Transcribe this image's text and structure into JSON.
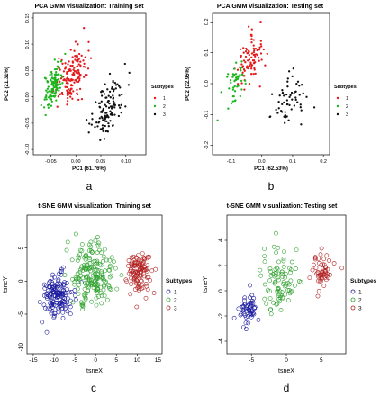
{
  "colors": {
    "red": "#e41a1c",
    "green": "#1bb51b",
    "black": "#111111",
    "blue": "#1a1a9e",
    "tsne_red": "#b22222",
    "tsne_green": "#2ca02c"
  },
  "panel_labels": [
    "a",
    "b",
    "c",
    "d"
  ],
  "chart_data": [
    {
      "type": "scatter",
      "title": "PCA GMM visualization: Training set",
      "xlabel": "PC1 (61.76%)",
      "ylabel": "PC2 (21.31%)",
      "xlim": [
        -0.085,
        0.14
      ],
      "ylim": [
        -0.11,
        0.16
      ],
      "xticks": [
        "-0.05",
        "0.00",
        "0.05",
        "0.10"
      ],
      "xtick_values": [
        -0.05,
        0.0,
        0.05,
        0.1
      ],
      "yticks": [
        "-0.10",
        "-0.05",
        "0.00",
        "0.05",
        "0.10",
        "0.15"
      ],
      "ytick_values": [
        -0.1,
        -0.05,
        0.0,
        0.05,
        0.1,
        0.15
      ],
      "legend_title": "Subtypes",
      "legend_position": "right",
      "series": [
        {
          "name": "1",
          "color": "red",
          "marker": "dot",
          "center": [
            -0.01,
            0.04
          ],
          "spread": [
            0.028,
            0.045
          ],
          "n": 150
        },
        {
          "name": "2",
          "color": "green",
          "marker": "dot",
          "center": [
            -0.045,
            0.02
          ],
          "spread": [
            0.016,
            0.03
          ],
          "n": 110
        },
        {
          "name": "3",
          "color": "black",
          "marker": "dot",
          "center": [
            0.065,
            -0.02
          ],
          "spread": [
            0.03,
            0.045
          ],
          "n": 120
        }
      ]
    },
    {
      "type": "scatter",
      "title": "PCA GMM visualization: Testing set",
      "xlabel": "PC1 (62.53%)",
      "ylabel": "PC2 (22.95%)",
      "xlim": [
        -0.16,
        0.22
      ],
      "ylim": [
        -0.23,
        0.23
      ],
      "xticks": [
        "-0.1",
        "0.0",
        "0.1",
        "0.2"
      ],
      "xtick_values": [
        -0.1,
        0.0,
        0.1,
        0.2
      ],
      "yticks": [
        "-0.2",
        "-0.1",
        "0.0",
        "0.1",
        "0.2"
      ],
      "ytick_values": [
        -0.2,
        -0.1,
        0.0,
        0.1,
        0.2
      ],
      "legend_title": "Subtypes",
      "legend_position": "right",
      "series": [
        {
          "name": "1",
          "color": "red",
          "marker": "dot",
          "center": [
            -0.04,
            0.07
          ],
          "spread": [
            0.04,
            0.07
          ],
          "n": 90
        },
        {
          "name": "2",
          "color": "green",
          "marker": "dot",
          "center": [
            -0.09,
            0.0
          ],
          "spread": [
            0.03,
            0.05
          ],
          "n": 50
        },
        {
          "name": "3",
          "color": "black",
          "marker": "dot",
          "center": [
            0.09,
            -0.06
          ],
          "spread": [
            0.05,
            0.07
          ],
          "n": 60
        }
      ]
    },
    {
      "type": "scatter",
      "title": "t-SNE GMM visualization: Training set",
      "xlabel": "tsneX",
      "ylabel": "tsneY",
      "xlim": [
        -16.5,
        16
      ],
      "ylim": [
        -11,
        10
      ],
      "xticks": [
        "-15",
        "-10",
        "-5",
        "0",
        "5",
        "10",
        "15"
      ],
      "xtick_values": [
        -15,
        -10,
        -5,
        0,
        5,
        10,
        15
      ],
      "yticks": [
        "-10",
        "-5",
        "0",
        "5"
      ],
      "ytick_values": [
        -10,
        -5,
        0,
        5
      ],
      "legend_title": "Subtypes",
      "legend_position": "right",
      "series": [
        {
          "name": "1",
          "color": "blue",
          "marker": "circle",
          "center": [
            -9,
            -2
          ],
          "spread": [
            3.3,
            3.0
          ],
          "n": 150
        },
        {
          "name": "2",
          "color": "tsne_green",
          "marker": "circle",
          "center": [
            -1,
            1
          ],
          "spread": [
            4.2,
            4.0
          ],
          "n": 190
        },
        {
          "name": "3",
          "color": "tsne_red",
          "marker": "circle",
          "center": [
            10.5,
            1.5
          ],
          "spread": [
            2.3,
            3.0
          ],
          "n": 120
        }
      ]
    },
    {
      "type": "scatter",
      "title": "t-SNE GMM visualization: Testing set",
      "xlabel": "tsneX",
      "ylabel": "tsneY",
      "xlim": [
        -8.5,
        8.5
      ],
      "ylim": [
        -5,
        6
      ],
      "xticks": [
        "-5",
        "0",
        "5"
      ],
      "xtick_values": [
        -5,
        0,
        5
      ],
      "yticks": [
        "-4",
        "-2",
        "0",
        "2",
        "4"
      ],
      "ytick_values": [
        -4,
        -2,
        0,
        2,
        4
      ],
      "legend_title": "Subtypes",
      "legend_position": "right",
      "series": [
        {
          "name": "1",
          "color": "blue",
          "marker": "circle",
          "center": [
            -5.5,
            -1.5
          ],
          "spread": [
            1.3,
            1.2
          ],
          "n": 55
        },
        {
          "name": "2",
          "color": "tsne_green",
          "marker": "circle",
          "center": [
            -1,
            1
          ],
          "spread": [
            2.3,
            2.2
          ],
          "n": 90
        },
        {
          "name": "3",
          "color": "tsne_red",
          "marker": "circle",
          "center": [
            5,
            1.5
          ],
          "spread": [
            1.6,
            1.5
          ],
          "n": 55
        }
      ]
    }
  ]
}
